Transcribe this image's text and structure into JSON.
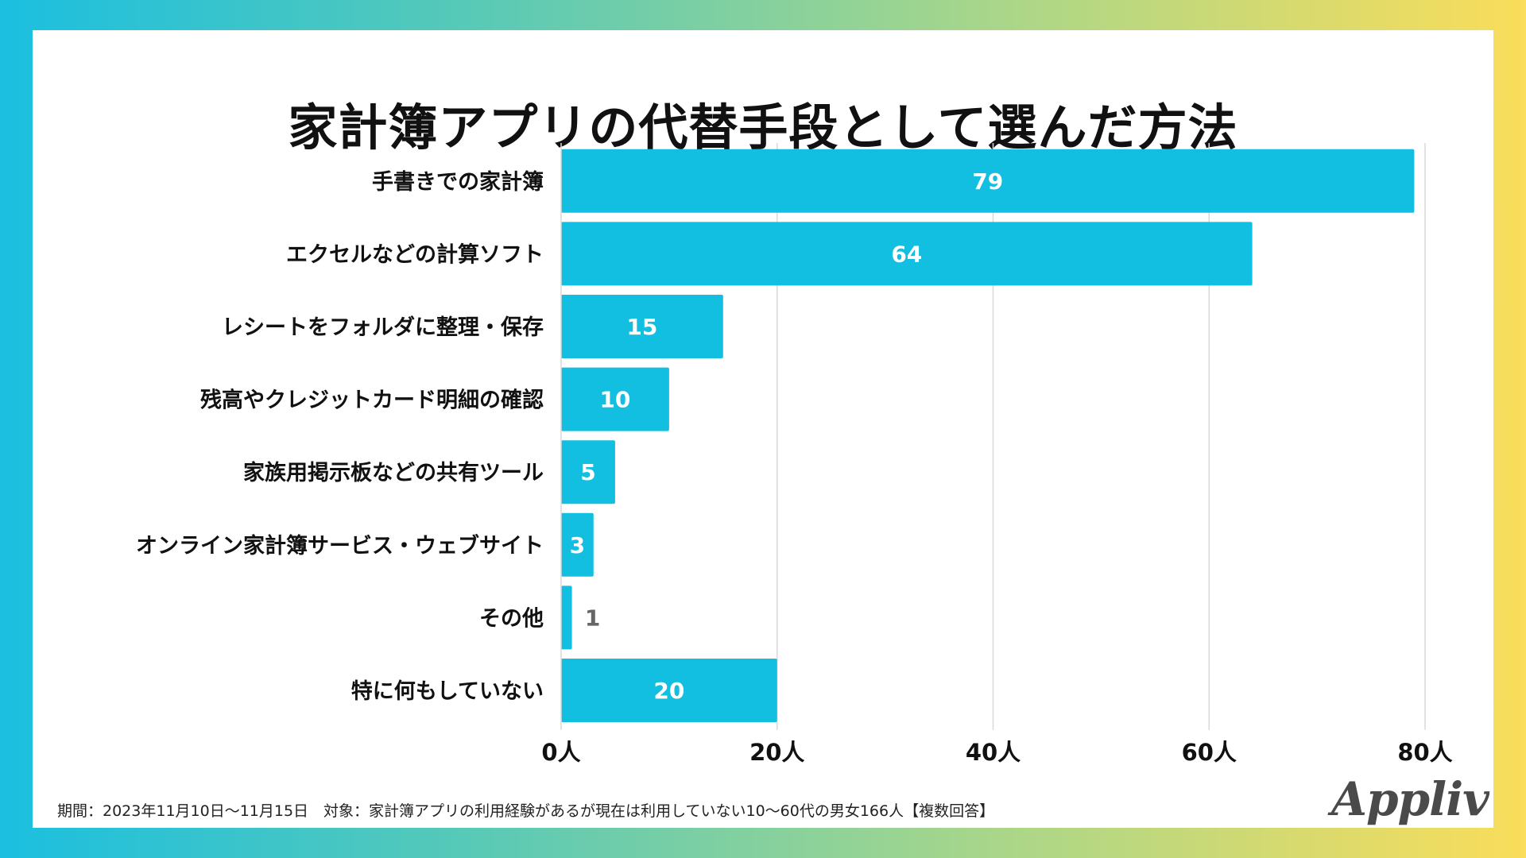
{
  "title": "家計簿アプリの代替手段として選んだ方法",
  "chart_data": {
    "type": "bar",
    "orientation": "horizontal",
    "title": "家計簿アプリの代替手段として選んだ方法",
    "categories": [
      "手書きでの家計簿",
      "エクセルなどの計算ソフト",
      "レシートをフォルダに整理・保存",
      "残高やクレジットカード明細の確認",
      "家族用掲示板などの共有ツール",
      "オンライン家計簿サービス・ウェブサイト",
      "その他",
      "特に何もしていない"
    ],
    "values": [
      79,
      64,
      15,
      10,
      5,
      3,
      1,
      20
    ],
    "xlim": [
      0,
      80
    ],
    "ticks": [
      0,
      20,
      40,
      60,
      80
    ],
    "tick_labels": [
      "0人",
      "20人",
      "40人",
      "60人",
      "80人"
    ],
    "grid": true,
    "colors": {
      "bar": "#12bfe0",
      "label_inside": "#ffffff",
      "label_outside": "#666666",
      "grid": "#d9d9d9"
    }
  },
  "footnote": "期間：2023年11月10日〜11月15日　対象：家計簿アプリの利用経験があるが現在は利用していない10〜60代の男女166人【複数回答】",
  "logo_text": "Appliv"
}
